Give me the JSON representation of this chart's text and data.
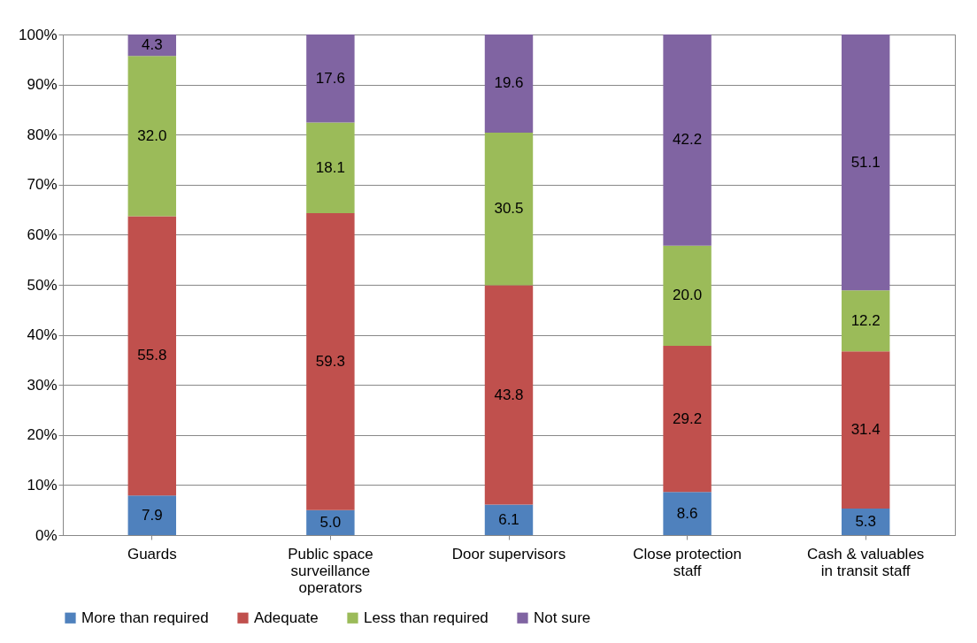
{
  "chart_data": {
    "type": "bar",
    "stacked": true,
    "categories": [
      "Guards",
      "Public space surveillance operators",
      "Door supervisors",
      "Close protection staff",
      "Cash & valuables in transit staff"
    ],
    "series": [
      {
        "name": "More than required",
        "color": "#4f81bd",
        "values": [
          7.9,
          5.0,
          6.1,
          8.6,
          5.3
        ],
        "value_labels": [
          "7.9",
          "5.0",
          "6.1",
          "8.6",
          "5.3"
        ]
      },
      {
        "name": "Adequate",
        "color": "#c0504d",
        "values": [
          55.8,
          59.3,
          43.8,
          29.2,
          31.4
        ],
        "value_labels": [
          "55.8",
          "59.3",
          "43.8",
          "29.2",
          "31.4"
        ]
      },
      {
        "name": "Less than required",
        "color": "#9bbb59",
        "values": [
          32.0,
          18.1,
          30.5,
          20.0,
          12.2
        ],
        "value_labels": [
          "32.0",
          "18.1",
          "30.5",
          "20.0",
          "12.2"
        ]
      },
      {
        "name": "Not sure",
        "color": "#8064a2",
        "values": [
          4.3,
          17.6,
          19.6,
          42.2,
          51.1
        ],
        "value_labels": [
          "4.3",
          "17.6",
          "19.6",
          "42.2",
          "51.1"
        ]
      }
    ],
    "ylim": [
      0,
      100
    ],
    "yticks": [
      {
        "value": 0,
        "label": "0%"
      },
      {
        "value": 10,
        "label": "10%"
      },
      {
        "value": 20,
        "label": "20%"
      },
      {
        "value": 30,
        "label": "30%"
      },
      {
        "value": 40,
        "label": "40%"
      },
      {
        "value": 50,
        "label": "50%"
      },
      {
        "value": 60,
        "label": "60%"
      },
      {
        "value": 70,
        "label": "70%"
      },
      {
        "value": 80,
        "label": "80%"
      },
      {
        "value": 90,
        "label": "90%"
      },
      {
        "value": 100,
        "label": "100%"
      }
    ],
    "grid": "y",
    "legend": "bottom"
  }
}
